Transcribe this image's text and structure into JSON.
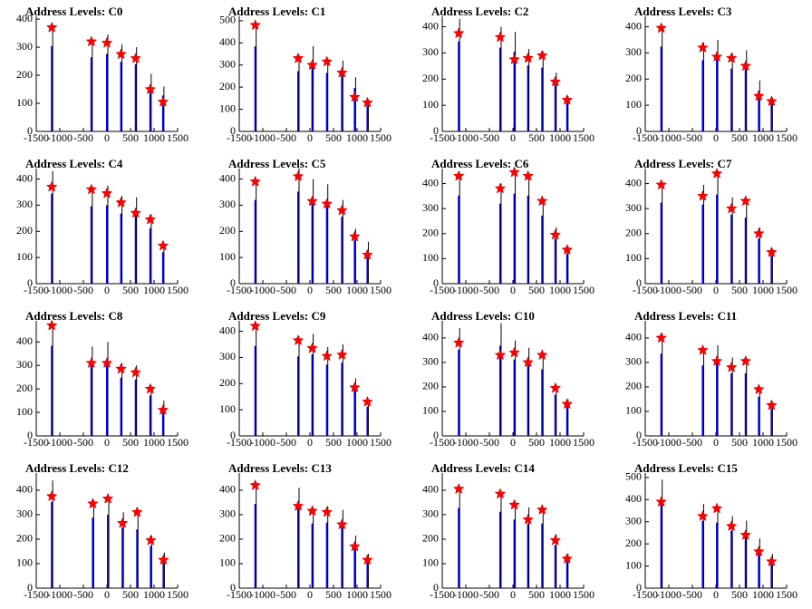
{
  "chart_data": [
    {
      "type": "peaks",
      "title": "Address Levels: C0",
      "x": [
        -1170,
        -330,
        0,
        300,
        610,
        920,
        1190
      ],
      "spikes": [
        380,
        330,
        345,
        310,
        300,
        205,
        160
      ],
      "markers": [
        370,
        320,
        315,
        275,
        260,
        150,
        105
      ],
      "xlim": [
        -1500,
        1500
      ],
      "ylim": [
        0,
        410
      ],
      "xticks": [
        -1500,
        -1000,
        -500,
        0,
        500,
        1000,
        1500
      ],
      "yticks": [
        0,
        100,
        200,
        300,
        400
      ]
    },
    {
      "type": "peaks",
      "title": "Address Levels: C1",
      "x": [
        -1160,
        -250,
        50,
        360,
        680,
        950,
        1220
      ],
      "spikes": [
        480,
        340,
        385,
        330,
        320,
        245,
        145
      ],
      "markers": [
        480,
        330,
        300,
        315,
        265,
        155,
        130
      ],
      "xlim": [
        -1500,
        1500
      ],
      "ylim": [
        0,
        520
      ],
      "xticks": [
        -1500,
        -1000,
        -500,
        0,
        500,
        1000,
        1500
      ],
      "yticks": [
        0,
        100,
        200,
        300,
        400,
        500
      ]
    },
    {
      "type": "peaks",
      "title": "Address Levels: C2",
      "x": [
        -1150,
        -270,
        30,
        320,
        620,
        900,
        1150
      ],
      "spikes": [
        430,
        400,
        380,
        315,
        305,
        225,
        135
      ],
      "markers": [
        375,
        360,
        275,
        280,
        290,
        190,
        120
      ],
      "xlim": [
        -1500,
        1500
      ],
      "ylim": [
        0,
        440
      ],
      "xticks": [
        -1500,
        -1000,
        -500,
        0,
        500,
        1000,
        1500
      ],
      "yticks": [
        0,
        100,
        200,
        300,
        400
      ]
    },
    {
      "type": "peaks",
      "title": "Address Levels: C3",
      "x": [
        -1160,
        -280,
        20,
        330,
        630,
        910,
        1180
      ],
      "spikes": [
        405,
        340,
        350,
        300,
        310,
        195,
        130
      ],
      "markers": [
        395,
        320,
        285,
        280,
        250,
        135,
        115
      ],
      "xlim": [
        -1500,
        1500
      ],
      "ylim": [
        0,
        440
      ],
      "xticks": [
        -1500,
        -1000,
        -500,
        0,
        500,
        1000,
        1500
      ],
      "yticks": [
        0,
        100,
        200,
        300,
        400
      ]
    },
    {
      "type": "peaks",
      "title": "Address Levels: C4",
      "x": [
        -1170,
        -330,
        0,
        300,
        610,
        920,
        1190
      ],
      "spikes": [
        430,
        370,
        375,
        335,
        330,
        265,
        150
      ],
      "markers": [
        370,
        360,
        345,
        310,
        270,
        245,
        145
      ],
      "xlim": [
        -1500,
        1500
      ],
      "ylim": [
        0,
        440
      ],
      "xticks": [
        -1500,
        -1000,
        -500,
        0,
        500,
        1000,
        1500
      ],
      "yticks": [
        0,
        100,
        200,
        300,
        400
      ]
    },
    {
      "type": "peaks",
      "title": "Address Levels: C5",
      "x": [
        -1160,
        -250,
        50,
        360,
        680,
        950,
        1220
      ],
      "spikes": [
        400,
        440,
        400,
        380,
        320,
        210,
        160
      ],
      "markers": [
        390,
        410,
        315,
        305,
        280,
        180,
        110
      ],
      "xlim": [
        -1500,
        1500
      ],
      "ylim": [
        0,
        440
      ],
      "xticks": [
        -1500,
        -1000,
        -500,
        0,
        500,
        1000,
        1500
      ],
      "yticks": [
        0,
        100,
        200,
        300,
        400
      ]
    },
    {
      "type": "peaks",
      "title": "Address Levels: C6",
      "x": [
        -1150,
        -270,
        30,
        320,
        620,
        900,
        1150
      ],
      "spikes": [
        440,
        400,
        450,
        440,
        340,
        225,
        150
      ],
      "markers": [
        430,
        380,
        445,
        430,
        330,
        195,
        135
      ],
      "xlim": [
        -1500,
        1500
      ],
      "ylim": [
        0,
        460
      ],
      "xticks": [
        -1500,
        -1000,
        -500,
        0,
        500,
        1000,
        1500
      ],
      "yticks": [
        0,
        100,
        200,
        300,
        400
      ]
    },
    {
      "type": "peaks",
      "title": "Address Levels: C7",
      "x": [
        -1160,
        -280,
        20,
        330,
        630,
        910,
        1180
      ],
      "spikes": [
        405,
        395,
        445,
        345,
        330,
        225,
        140
      ],
      "markers": [
        395,
        350,
        440,
        300,
        330,
        200,
        125
      ],
      "xlim": [
        -1500,
        1500
      ],
      "ylim": [
        0,
        460
      ],
      "xticks": [
        -1500,
        -1000,
        -500,
        0,
        500,
        1000,
        1500
      ],
      "yticks": [
        0,
        100,
        200,
        300,
        400
      ]
    },
    {
      "type": "peaks",
      "title": "Address Levels: C8",
      "x": [
        -1170,
        -330,
        0,
        300,
        610,
        920,
        1190
      ],
      "spikes": [
        480,
        380,
        400,
        310,
        300,
        215,
        150
      ],
      "markers": [
        470,
        310,
        310,
        285,
        270,
        200,
        110
      ],
      "xlim": [
        -1500,
        1500
      ],
      "ylim": [
        0,
        490
      ],
      "xticks": [
        -1500,
        -1000,
        -500,
        0,
        500,
        1000,
        1500
      ],
      "yticks": [
        0,
        100,
        200,
        300,
        400
      ]
    },
    {
      "type": "peaks",
      "title": "Address Levels: C9",
      "x": [
        -1160,
        -250,
        50,
        360,
        680,
        950,
        1220
      ],
      "spikes": [
        430,
        380,
        390,
        340,
        350,
        220,
        140
      ],
      "markers": [
        420,
        365,
        335,
        305,
        310,
        185,
        130
      ],
      "xlim": [
        -1500,
        1500
      ],
      "ylim": [
        0,
        440
      ],
      "xticks": [
        -1500,
        -1000,
        -500,
        0,
        500,
        1000,
        1500
      ],
      "yticks": [
        0,
        100,
        200,
        300,
        400
      ]
    },
    {
      "type": "peaks",
      "title": "Address Levels: C10",
      "x": [
        -1150,
        -270,
        30,
        320,
        620,
        900,
        1150
      ],
      "spikes": [
        440,
        460,
        390,
        360,
        340,
        210,
        150
      ],
      "markers": [
        380,
        330,
        340,
        300,
        330,
        195,
        130
      ],
      "xlim": [
        -1500,
        1500
      ],
      "ylim": [
        0,
        470
      ],
      "xticks": [
        -1500,
        -1000,
        -500,
        0,
        500,
        1000,
        1500
      ],
      "yticks": [
        0,
        100,
        200,
        300,
        400
      ]
    },
    {
      "type": "peaks",
      "title": "Address Levels: C11",
      "x": [
        -1160,
        -280,
        20,
        330,
        630,
        910,
        1180
      ],
      "spikes": [
        420,
        360,
        370,
        320,
        320,
        200,
        140
      ],
      "markers": [
        400,
        350,
        305,
        280,
        305,
        190,
        125
      ],
      "xlim": [
        -1500,
        1500
      ],
      "ylim": [
        0,
        470
      ],
      "xticks": [
        -1500,
        -1000,
        -500,
        0,
        500,
        1000,
        1500
      ],
      "yticks": [
        0,
        100,
        200,
        300,
        400
      ]
    },
    {
      "type": "peaks",
      "title": "Address Levels: C12",
      "x": [
        -1170,
        -300,
        20,
        330,
        640,
        930,
        1200
      ],
      "spikes": [
        440,
        360,
        375,
        310,
        300,
        215,
        145
      ],
      "markers": [
        375,
        345,
        365,
        265,
        310,
        195,
        115
      ],
      "xlim": [
        -1500,
        1500
      ],
      "ylim": [
        0,
        470
      ],
      "xticks": [
        -1500,
        -1000,
        -500,
        0,
        500,
        1000,
        1500
      ],
      "yticks": [
        0,
        100,
        200,
        300,
        400
      ]
    },
    {
      "type": "peaks",
      "title": "Address Levels: C13",
      "x": [
        -1160,
        -250,
        50,
        360,
        680,
        950,
        1220
      ],
      "spikes": [
        430,
        410,
        330,
        335,
        320,
        215,
        140
      ],
      "markers": [
        420,
        335,
        315,
        310,
        260,
        170,
        115
      ],
      "xlim": [
        -1500,
        1500
      ],
      "ylim": [
        0,
        470
      ],
      "xticks": [
        -1500,
        -1000,
        -500,
        0,
        500,
        1000,
        1500
      ],
      "yticks": [
        0,
        100,
        200,
        300,
        400
      ]
    },
    {
      "type": "peaks",
      "title": "Address Levels: C14",
      "x": [
        -1150,
        -270,
        30,
        320,
        620,
        900,
        1150
      ],
      "spikes": [
        410,
        390,
        350,
        330,
        330,
        220,
        140
      ],
      "markers": [
        405,
        385,
        340,
        280,
        320,
        195,
        120
      ],
      "xlim": [
        -1500,
        1500
      ],
      "ylim": [
        0,
        470
      ],
      "xticks": [
        -1500,
        -1000,
        -500,
        0,
        500,
        1000,
        1500
      ],
      "yticks": [
        0,
        100,
        200,
        300,
        400
      ]
    },
    {
      "type": "peaks",
      "title": "Address Levels: C15",
      "x": [
        -1160,
        -280,
        20,
        330,
        630,
        910,
        1180
      ],
      "spikes": [
        490,
        380,
        370,
        325,
        305,
        225,
        155
      ],
      "markers": [
        390,
        325,
        360,
        280,
        240,
        165,
        120
      ],
      "xlim": [
        -1500,
        1500
      ],
      "ylim": [
        0,
        520
      ],
      "xticks": [
        -1500,
        -1000,
        -500,
        0,
        500,
        1000,
        1500
      ],
      "yticks": [
        0,
        100,
        200,
        300,
        400,
        500
      ]
    }
  ]
}
